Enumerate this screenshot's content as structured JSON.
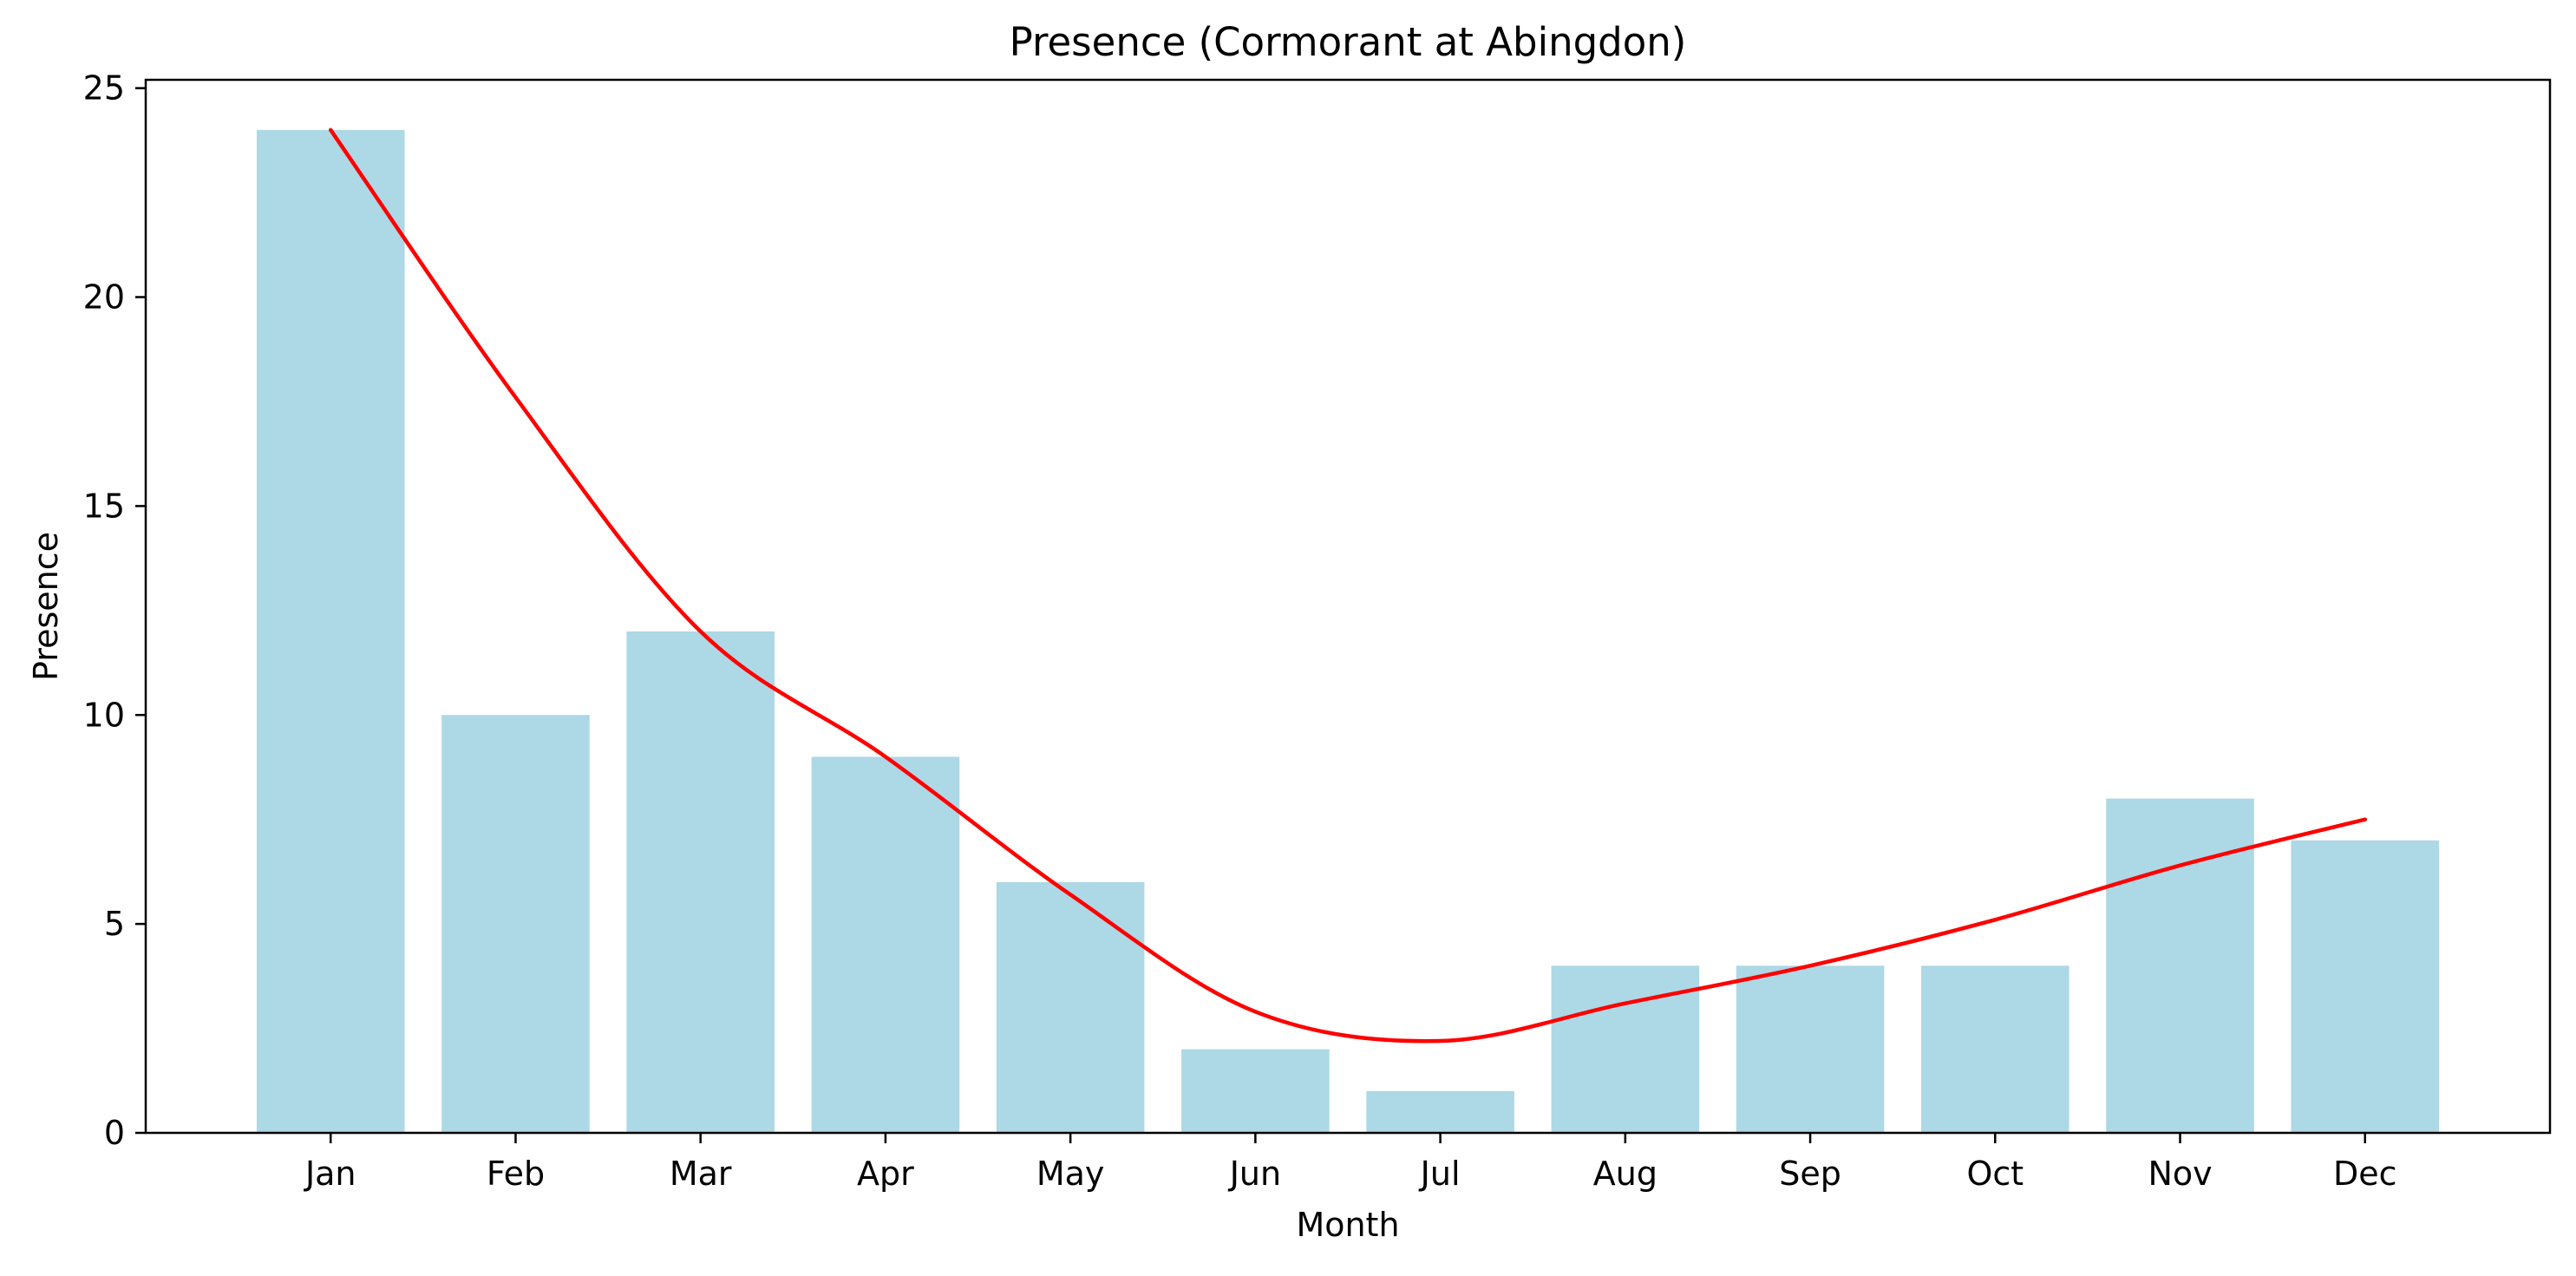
{
  "chart_data": {
    "type": "bar",
    "title": "Presence (Cormorant at Abingdon)",
    "xlabel": "Month",
    "ylabel": "Presence",
    "categories": [
      "Jan",
      "Feb",
      "Mar",
      "Apr",
      "May",
      "Jun",
      "Jul",
      "Aug",
      "Sep",
      "Oct",
      "Nov",
      "Dec"
    ],
    "values": [
      24,
      10,
      12,
      9,
      6,
      2,
      1,
      4,
      4,
      4,
      8,
      7
    ],
    "trend_line": [
      24.0,
      17.6,
      12.0,
      9.0,
      5.7,
      2.9,
      2.2,
      3.1,
      4.0,
      5.1,
      6.4,
      7.5
    ],
    "ylim": [
      0,
      25.2
    ],
    "yticks": [
      0,
      5,
      10,
      15,
      20,
      25
    ],
    "grid": false,
    "legend": "none",
    "colors": {
      "bar": "#add8e6",
      "line": "#ff0000",
      "axis": "#000000"
    }
  }
}
